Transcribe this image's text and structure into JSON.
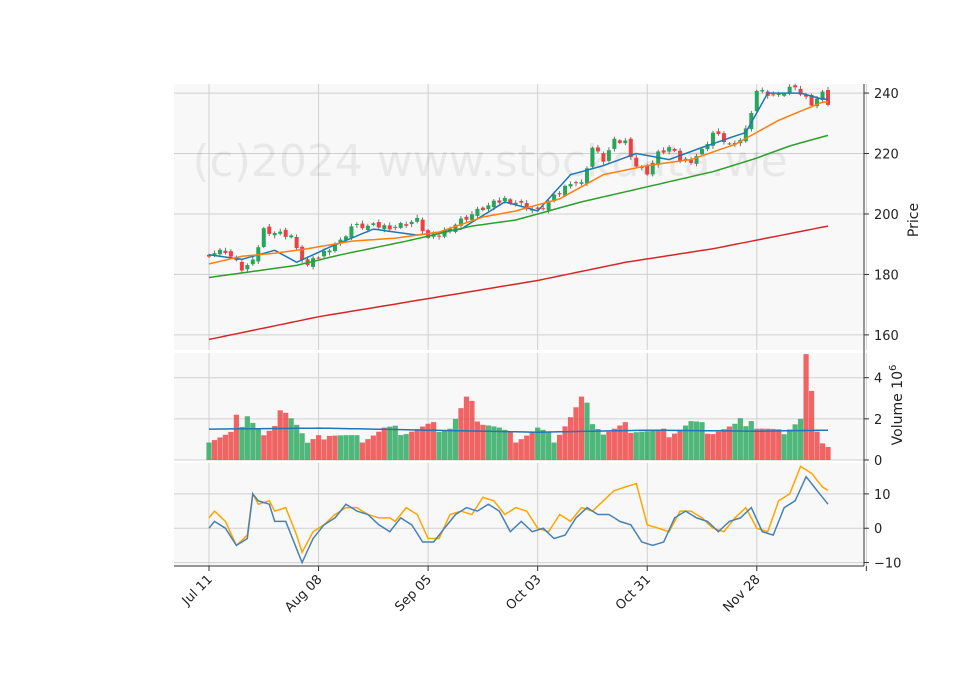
{
  "watermark": "(c)2024 www.stockdata.we",
  "colors": {
    "panel_bg": "#f8f8f8",
    "grid": "#d0d0d0",
    "up": "#26a65b",
    "down": "#ef3f3f",
    "ma_fast": "#1f77b4",
    "ma_mid": "#ff7f0e",
    "ma_slow": "#2ca02c",
    "ma_long": "#d62728",
    "osc_a": "#4682b4",
    "osc_b": "#ffa500",
    "volume_ma": "#1f77b4"
  },
  "chart_data": {
    "type": "candlestick",
    "x_tick_labels": [
      "Jul 11",
      "Aug 08",
      "Sep 05",
      "Oct 03",
      "Oct 31",
      "Nov 28"
    ],
    "price_panel": {
      "ylabel": "Price",
      "ylim": [
        155,
        243
      ],
      "y_ticks": [
        160,
        180,
        200,
        220,
        240
      ],
      "grid": true,
      "series": [
        {
          "role": "ma_fast",
          "anchors": [
            [
              0,
              186.5
            ],
            [
              6,
              185
            ],
            [
              12,
              188
            ],
            [
              16,
              184
            ],
            [
              22,
              189
            ],
            [
              30,
              195
            ],
            [
              38,
              193
            ],
            [
              46,
              195
            ],
            [
              54,
              204
            ],
            [
              60,
              201
            ],
            [
              66,
              213
            ],
            [
              72,
              216
            ],
            [
              78,
              220
            ],
            [
              84,
              218
            ],
            [
              90,
              222
            ],
            [
              98,
              227
            ],
            [
              102,
              240
            ],
            [
              108,
              240
            ],
            [
              112,
              238
            ]
          ]
        },
        {
          "role": "ma_mid",
          "anchors": [
            [
              0,
              183.5
            ],
            [
              6,
              186
            ],
            [
              12,
              187
            ],
            [
              18,
              188.5
            ],
            [
              26,
              191
            ],
            [
              34,
              192
            ],
            [
              42,
              194
            ],
            [
              50,
              199
            ],
            [
              56,
              201
            ],
            [
              64,
              205
            ],
            [
              72,
              213
            ],
            [
              80,
              216
            ],
            [
              88,
              218
            ],
            [
              96,
              223
            ],
            [
              104,
              231
            ],
            [
              112,
              237
            ]
          ]
        },
        {
          "role": "ma_slow",
          "anchors": [
            [
              0,
              179
            ],
            [
              8,
              181
            ],
            [
              16,
              183
            ],
            [
              24,
              186.5
            ],
            [
              36,
              191
            ],
            [
              48,
              196
            ],
            [
              56,
              198
            ],
            [
              68,
              204
            ],
            [
              80,
              209
            ],
            [
              92,
              214
            ],
            [
              100,
              218.5
            ],
            [
              106,
              222.5
            ],
            [
              113,
              226
            ]
          ]
        },
        {
          "role": "ma_long",
          "anchors": [
            [
              0,
              158.5
            ],
            [
              20,
              166
            ],
            [
              40,
              172
            ],
            [
              60,
              178
            ],
            [
              76,
              184
            ],
            [
              92,
              188.5
            ],
            [
              113,
              196
            ]
          ]
        }
      ],
      "candle_anchors": [
        [
          0,
          187
        ],
        [
          3,
          188
        ],
        [
          6,
          182
        ],
        [
          8,
          184
        ],
        [
          10,
          195
        ],
        [
          12,
          194
        ],
        [
          15,
          193
        ],
        [
          16,
          188
        ],
        [
          18,
          183
        ],
        [
          20,
          186
        ],
        [
          22,
          189
        ],
        [
          24,
          191
        ],
        [
          26,
          196
        ],
        [
          30,
          196
        ],
        [
          34,
          196
        ],
        [
          38,
          198
        ],
        [
          40,
          192
        ],
        [
          42,
          193
        ],
        [
          46,
          198
        ],
        [
          50,
          202
        ],
        [
          54,
          205
        ],
        [
          56,
          204
        ],
        [
          60,
          201
        ],
        [
          62,
          204
        ],
        [
          64,
          207
        ],
        [
          66,
          211
        ],
        [
          68,
          210
        ],
        [
          70,
          222
        ],
        [
          72,
          218
        ],
        [
          74,
          224
        ],
        [
          76,
          224
        ],
        [
          78,
          216
        ],
        [
          80,
          214
        ],
        [
          82,
          220
        ],
        [
          84,
          222
        ],
        [
          86,
          218
        ],
        [
          88,
          218
        ],
        [
          90,
          221
        ],
        [
          92,
          227
        ],
        [
          96,
          222
        ],
        [
          98,
          228
        ],
        [
          100,
          241
        ],
        [
          104,
          239
        ],
        [
          106,
          242
        ],
        [
          108,
          240
        ],
        [
          110,
          237
        ],
        [
          112,
          240
        ],
        [
          113,
          237
        ]
      ]
    },
    "volume_panel": {
      "ylabel": "Volume  10^6",
      "ylim": [
        0,
        5.2
      ],
      "y_ticks": [
        0,
        2,
        4
      ],
      "bar_anchors": [
        [
          0,
          1.0
        ],
        [
          4,
          1.3
        ],
        [
          5,
          2.0
        ],
        [
          6,
          1.4
        ],
        [
          7,
          2.5
        ],
        [
          8,
          2.0
        ],
        [
          10,
          1.2
        ],
        [
          12,
          1.5
        ],
        [
          14,
          2.7
        ],
        [
          16,
          1.8
        ],
        [
          18,
          0.8
        ],
        [
          22,
          1.3
        ],
        [
          28,
          1.0
        ],
        [
          32,
          1.5
        ],
        [
          36,
          1.4
        ],
        [
          40,
          1.6
        ],
        [
          44,
          1.6
        ],
        [
          47,
          2.8
        ],
        [
          50,
          1.9
        ],
        [
          53,
          1.5
        ],
        [
          56,
          1.0
        ],
        [
          60,
          1.5
        ],
        [
          63,
          1.0
        ],
        [
          68,
          2.8
        ],
        [
          72,
          1.3
        ],
        [
          76,
          1.6
        ],
        [
          80,
          1.4
        ],
        [
          84,
          1.3
        ],
        [
          88,
          1.8
        ],
        [
          92,
          1.4
        ],
        [
          96,
          1.6
        ],
        [
          99,
          2.1
        ],
        [
          100,
          1.6
        ],
        [
          104,
          1.3
        ],
        [
          108,
          2.0
        ],
        [
          109,
          4.9
        ],
        [
          111,
          1.2
        ],
        [
          113,
          0.7
        ]
      ],
      "ma_anchors": [
        [
          0,
          1.5
        ],
        [
          20,
          1.55
        ],
        [
          40,
          1.45
        ],
        [
          60,
          1.35
        ],
        [
          80,
          1.45
        ],
        [
          100,
          1.4
        ],
        [
          113,
          1.45
        ]
      ]
    },
    "oscillator_panel": {
      "ylim": [
        -11,
        19
      ],
      "y_ticks": [
        -10,
        0,
        10
      ],
      "series": [
        {
          "role": "osc_b",
          "anchors": [
            [
              0,
              3
            ],
            [
              1,
              5
            ],
            [
              3,
              2
            ],
            [
              5,
              -5
            ],
            [
              7,
              -2
            ],
            [
              8,
              10
            ],
            [
              9,
              7
            ],
            [
              11,
              8
            ],
            [
              12,
              5
            ],
            [
              14,
              6
            ],
            [
              16,
              -2
            ],
            [
              17,
              -7
            ],
            [
              19,
              -1
            ],
            [
              21,
              1
            ],
            [
              23,
              4
            ],
            [
              25,
              6
            ],
            [
              27,
              6
            ],
            [
              29,
              4
            ],
            [
              31,
              3
            ],
            [
              33,
              3
            ],
            [
              34,
              2
            ],
            [
              36,
              6
            ],
            [
              38,
              4
            ],
            [
              40,
              -3
            ],
            [
              42,
              -3
            ],
            [
              44,
              4
            ],
            [
              46,
              5
            ],
            [
              48,
              4
            ],
            [
              50,
              9
            ],
            [
              52,
              8
            ],
            [
              54,
              4
            ],
            [
              56,
              6
            ],
            [
              58,
              5
            ],
            [
              60,
              0
            ],
            [
              62,
              -1
            ],
            [
              64,
              4
            ],
            [
              66,
              2
            ],
            [
              68,
              6
            ],
            [
              70,
              5
            ],
            [
              72,
              8
            ],
            [
              74,
              11
            ],
            [
              76,
              12
            ],
            [
              78,
              13
            ],
            [
              80,
              1
            ],
            [
              82,
              0
            ],
            [
              84,
              -1
            ],
            [
              86,
              5
            ],
            [
              88,
              5
            ],
            [
              90,
              3
            ],
            [
              92,
              0
            ],
            [
              94,
              -1
            ],
            [
              96,
              3
            ],
            [
              98,
              6
            ],
            [
              100,
              0
            ],
            [
              102,
              -1
            ],
            [
              104,
              8
            ],
            [
              106,
              10
            ],
            [
              108,
              18
            ],
            [
              110,
              16
            ],
            [
              112,
              12
            ],
            [
              114,
              10
            ],
            [
              116,
              12
            ],
            [
              118,
              8
            ],
            [
              120,
              3
            ],
            [
              121,
              1
            ],
            [
              122,
              3
            ],
            [
              123,
              -1
            ]
          ]
        },
        {
          "role": "osc_a",
          "anchors": [
            [
              0,
              0
            ],
            [
              1,
              2
            ],
            [
              3,
              0
            ],
            [
              5,
              -5
            ],
            [
              7,
              -3
            ],
            [
              8,
              10
            ],
            [
              9,
              8
            ],
            [
              11,
              7
            ],
            [
              12,
              2
            ],
            [
              14,
              2
            ],
            [
              16,
              -6
            ],
            [
              17,
              -10
            ],
            [
              19,
              -3
            ],
            [
              21,
              1
            ],
            [
              23,
              3
            ],
            [
              25,
              7
            ],
            [
              27,
              5
            ],
            [
              29,
              4
            ],
            [
              31,
              1
            ],
            [
              33,
              -1
            ],
            [
              35,
              3
            ],
            [
              37,
              1
            ],
            [
              39,
              -4
            ],
            [
              41,
              -4
            ],
            [
              43,
              0
            ],
            [
              45,
              4
            ],
            [
              47,
              6
            ],
            [
              49,
              5
            ],
            [
              51,
              7
            ],
            [
              53,
              5
            ],
            [
              55,
              -1
            ],
            [
              57,
              2
            ],
            [
              59,
              -1
            ],
            [
              61,
              0
            ],
            [
              63,
              -3
            ],
            [
              65,
              -2
            ],
            [
              67,
              3
            ],
            [
              69,
              6
            ],
            [
              71,
              4
            ],
            [
              73,
              4
            ],
            [
              75,
              2
            ],
            [
              77,
              1
            ],
            [
              79,
              -4
            ],
            [
              81,
              -5
            ],
            [
              83,
              -4
            ],
            [
              85,
              3
            ],
            [
              87,
              5
            ],
            [
              89,
              3
            ],
            [
              91,
              2
            ],
            [
              93,
              -1
            ],
            [
              95,
              2
            ],
            [
              97,
              3
            ],
            [
              99,
              6
            ],
            [
              101,
              -1
            ],
            [
              103,
              -2
            ],
            [
              105,
              6
            ],
            [
              107,
              8
            ],
            [
              109,
              15
            ],
            [
              111,
              11
            ],
            [
              113,
              7
            ],
            [
              115,
              2
            ],
            [
              117,
              3
            ],
            [
              119,
              1
            ],
            [
              121,
              -1
            ],
            [
              122,
              -3
            ],
            [
              123,
              -3
            ],
            [
              124,
              0
            ],
            [
              125,
              -2
            ]
          ]
        }
      ]
    }
  }
}
